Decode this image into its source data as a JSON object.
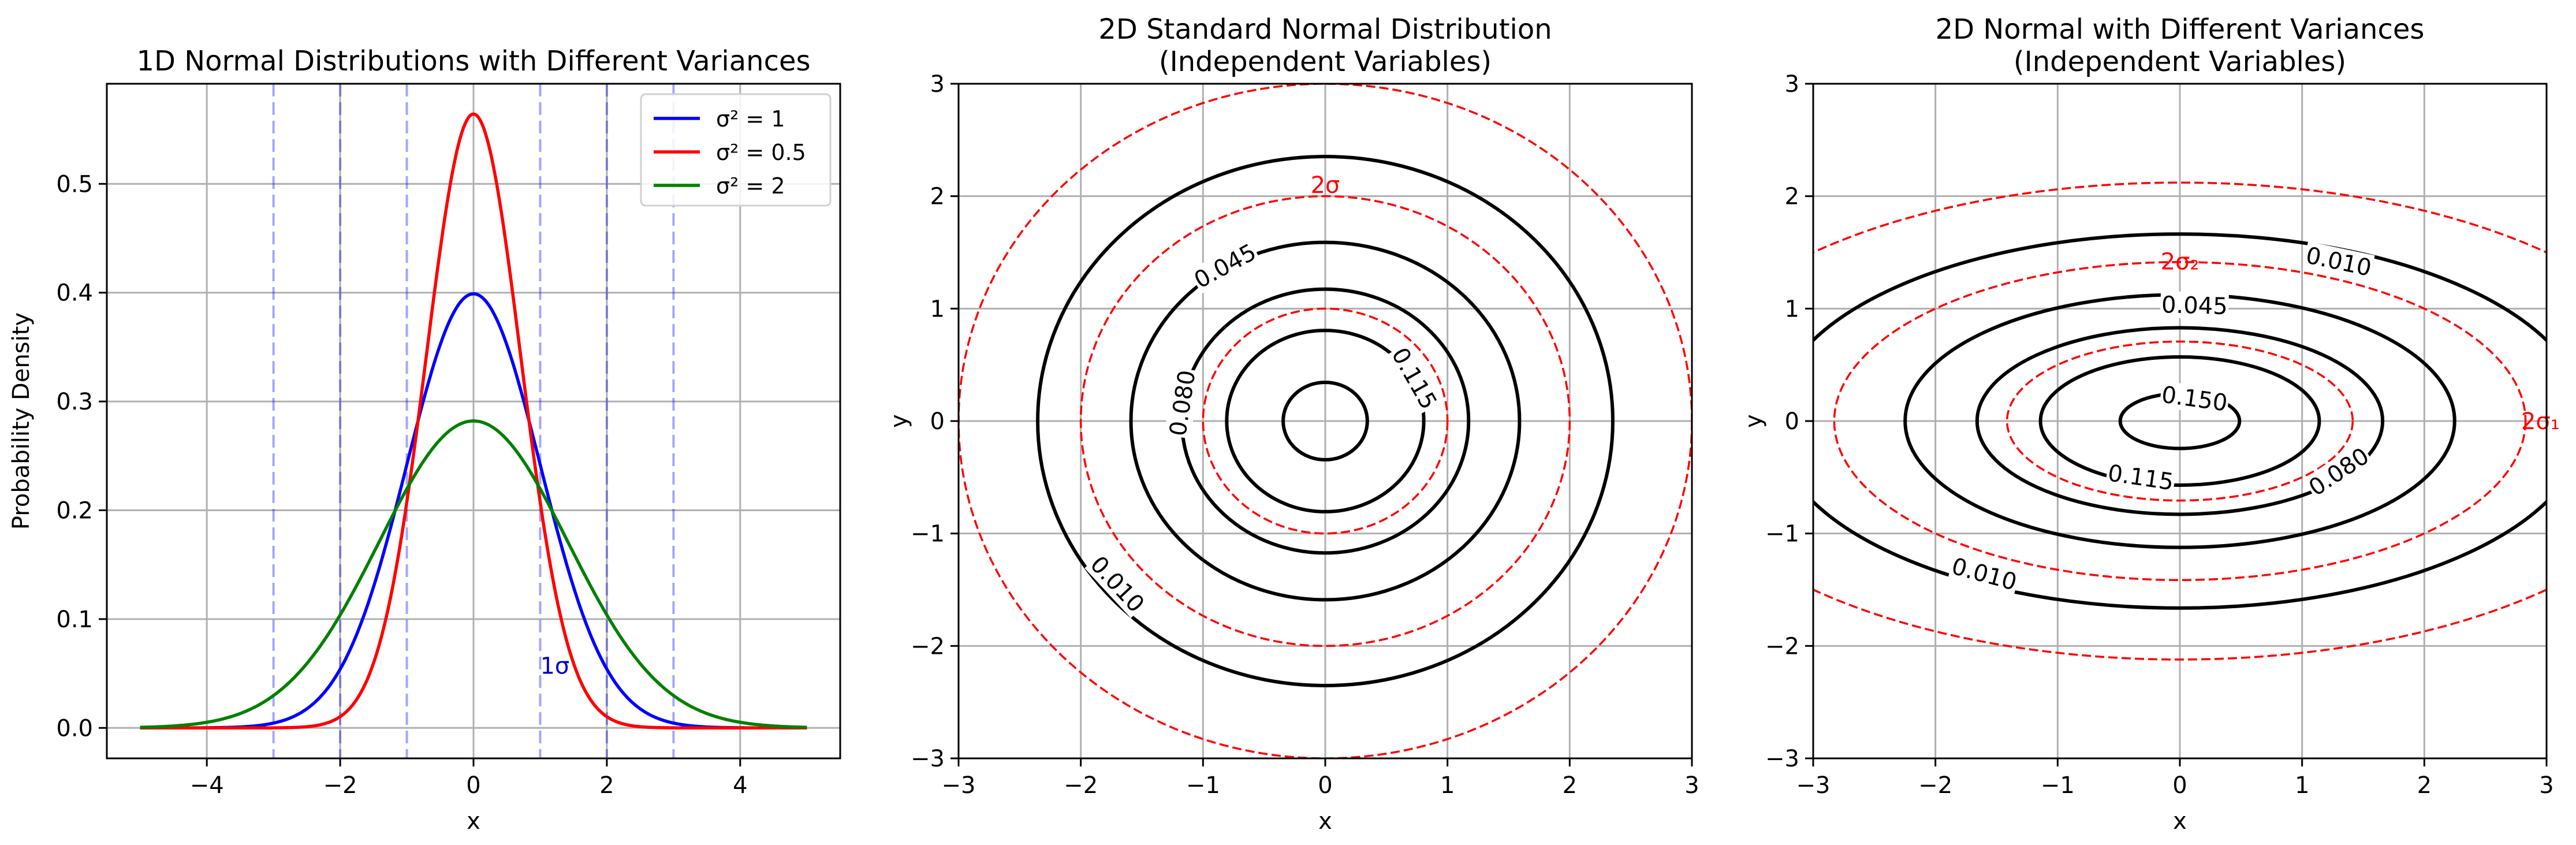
{
  "chart_data": [
    {
      "type": "line",
      "title": "1D Normal Distributions with Different Variances",
      "xlabel": "x",
      "ylabel": "Probability Density",
      "xlim": [
        -5.5,
        5.5
      ],
      "ylim": [
        -0.028,
        0.592
      ],
      "xticks": [
        -4,
        -2,
        0,
        2,
        4
      ],
      "yticks": [
        0.0,
        0.1,
        0.2,
        0.3,
        0.4,
        0.5
      ],
      "grid": true,
      "legend": "top-right",
      "series": [
        {
          "name": "σ² = 1",
          "mean": 0,
          "variance": 1,
          "x_range": [
            -5,
            5
          ],
          "color": "#0000ff"
        },
        {
          "name": "σ² = 0.5",
          "mean": 0,
          "variance": 0.5,
          "x_range": [
            -5,
            5
          ],
          "color": "#ff0000"
        },
        {
          "name": "σ² = 2",
          "mean": 0,
          "variance": 2,
          "x_range": [
            -5,
            5
          ],
          "color": "#008000"
        }
      ],
      "sigma_lines": {
        "x": [
          -3,
          -2,
          -1,
          1,
          2,
          3
        ],
        "color": "#0000ff"
      },
      "annotations": [
        {
          "text": "1σ",
          "x": 1,
          "y": 0.055,
          "color": "#0000cc"
        }
      ]
    },
    {
      "type": "contour",
      "title": "2D Standard Normal Distribution\n(Independent Variables)",
      "xlabel": "x",
      "ylabel": "y",
      "xlim": [
        -3,
        3
      ],
      "ylim": [
        -3,
        3
      ],
      "xticks": [
        -3,
        -2,
        -1,
        0,
        1,
        2,
        3
      ],
      "yticks": [
        -3,
        -2,
        -1,
        0,
        1,
        2,
        3
      ],
      "grid": true,
      "sigma_x": 1,
      "sigma_y": 1,
      "contour_levels": [
        0.01,
        0.045,
        0.08,
        0.115,
        0.15
      ],
      "contour_labels": [
        {
          "text": "0.010",
          "x": -1.7,
          "y": -1.45
        },
        {
          "text": "0.045",
          "x": -0.82,
          "y": 1.38
        },
        {
          "text": "0.080",
          "x": -1.17,
          "y": 0.16
        },
        {
          "text": "0.115",
          "x": 0.73,
          "y": 0.38
        }
      ],
      "sigma_ellipses": {
        "multiples": [
          1,
          2,
          3
        ],
        "color": "#ff0000"
      },
      "annotations": [
        {
          "text": "2σ",
          "x": 0,
          "y": 2.1,
          "color": "#ff0000"
        }
      ]
    },
    {
      "type": "contour",
      "title": "2D Normal with Different Variances\n(Independent Variables)",
      "xlabel": "x",
      "ylabel": "y",
      "xlim": [
        -3,
        3
      ],
      "ylim": [
        -3,
        3
      ],
      "xticks": [
        -3,
        -2,
        -1,
        0,
        1,
        2,
        3
      ],
      "yticks": [
        -3,
        -2,
        -1,
        0,
        1,
        2,
        3
      ],
      "grid": true,
      "sigma_x": 1.414,
      "sigma_y": 0.707,
      "contour_levels": [
        0.01,
        0.045,
        0.08,
        0.115,
        0.15
      ],
      "contour_labels": [
        {
          "text": "0.010",
          "x": 1.3,
          "y": 1.42
        },
        {
          "text": "0.045",
          "x": 0.12,
          "y": 1.03
        },
        {
          "text": "0.150",
          "x": 0.12,
          "y": 0.2
        },
        {
          "text": "0.115",
          "x": -0.32,
          "y": -0.5
        },
        {
          "text": "0.080",
          "x": 1.3,
          "y": -0.45
        },
        {
          "text": "0.010",
          "x": -1.6,
          "y": -1.36
        }
      ],
      "sigma_ellipses": {
        "multiples": [
          1,
          2,
          3
        ],
        "color": "#ff0000"
      },
      "annotations": [
        {
          "text": "2σ₂",
          "x": 0,
          "y": 1.42,
          "color": "#ff0000"
        },
        {
          "text": "2σ₁",
          "x": 2.95,
          "y": 0,
          "color": "#ff0000"
        }
      ]
    }
  ]
}
